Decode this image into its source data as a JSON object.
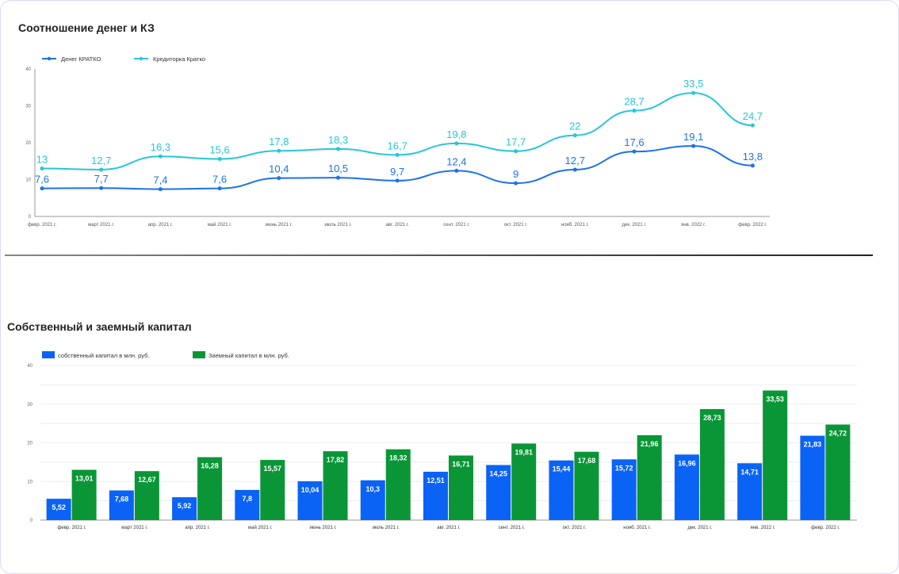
{
  "chart_data": [
    {
      "type": "line",
      "title": "Соотношение денег и КЗ",
      "categories": [
        "февр. 2021 г.",
        "март 2021 г.",
        "апр. 2021 г.",
        "май 2021 г.",
        "июнь 2021 г.",
        "июль 2021 г.",
        "авг. 2021 г.",
        "сент. 2021 г.",
        "окт. 2021 г.",
        "нояб. 2021 г.",
        "дек. 2021 г.",
        "янв. 2022 г.",
        "февр. 2022 г."
      ],
      "ylim": [
        0,
        40
      ],
      "yticks": [
        0,
        10,
        20,
        30,
        40
      ],
      "legend": "top-left",
      "series": [
        {
          "name": "Денег КРАТКО",
          "color": "#1a73e8",
          "labels": [
            "7,6",
            "7,7",
            "7,4",
            "7,6",
            "10,4",
            "10,5",
            "9,7",
            "12,4",
            "9",
            "12,7",
            "17,6",
            "19,1",
            "13,8"
          ],
          "values": [
            7.6,
            7.7,
            7.4,
            7.6,
            10.4,
            10.5,
            9.7,
            12.4,
            9,
            12.7,
            17.6,
            19.1,
            13.8
          ]
        },
        {
          "name": "Кредиторка Кратко",
          "color": "#26c6da",
          "labels": [
            "13",
            "12,7",
            "16,3",
            "15,6",
            "17,8",
            "18,3",
            "16,7",
            "19,8",
            "17,7",
            "22",
            "28,7",
            "33,5",
            "24,7"
          ],
          "values": [
            13,
            12.7,
            16.3,
            15.6,
            17.8,
            18.3,
            16.7,
            19.8,
            17.7,
            22,
            28.7,
            33.5,
            24.7
          ]
        }
      ]
    },
    {
      "type": "bar",
      "title": "Собственный и заемный капитал",
      "categories": [
        "февр. 2021 г.",
        "март 2021 г.",
        "апр. 2021 г.",
        "май 2021 г.",
        "июнь 2021 г.",
        "июль 2021 г.",
        "авг. 2021 г.",
        "сент. 2021 г.",
        "окт. 2021 г.",
        "нояб. 2021 г.",
        "дек. 2021 г.",
        "янв. 2022 г.",
        "февр. 2022 г."
      ],
      "ylim": [
        0,
        40
      ],
      "yticks": [
        0,
        10,
        20,
        30,
        40
      ],
      "legend": "top-left",
      "series": [
        {
          "name": "собственный капитал в млн. руб.",
          "color": "#0b63f6",
          "labels": [
            "5,52",
            "7,68",
            "5,92",
            "7,8",
            "10,04",
            "10,3",
            "12,51",
            "14,25",
            "15,44",
            "15,72",
            "16,96",
            "14,71",
            "21,83"
          ],
          "values": [
            5.52,
            7.68,
            5.92,
            7.8,
            10.04,
            10.3,
            12.51,
            14.25,
            15.44,
            15.72,
            16.96,
            14.71,
            21.83
          ]
        },
        {
          "name": "Заемный капитал в млн. руб.",
          "color": "#0a9637",
          "labels": [
            "13,01",
            "12,67",
            "16,28",
            "15,57",
            "17,82",
            "18,32",
            "16,71",
            "19,81",
            "17,68",
            "21,96",
            "28,73",
            "33,53",
            "24,72"
          ],
          "values": [
            13.01,
            12.67,
            16.28,
            15.57,
            17.82,
            18.32,
            16.71,
            19.81,
            17.68,
            21.96,
            28.73,
            33.53,
            24.72
          ]
        }
      ]
    }
  ]
}
